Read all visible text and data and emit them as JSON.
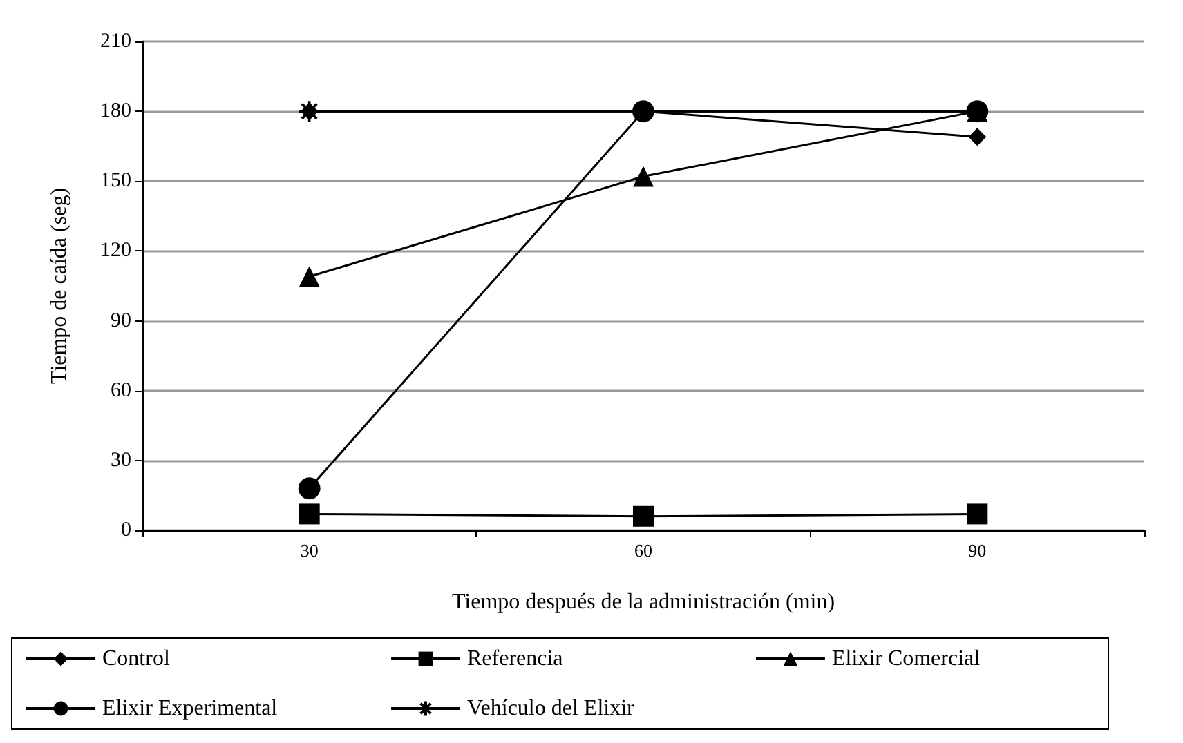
{
  "chart_data": {
    "type": "line",
    "xlabel": "Tiempo después de la administración (min)",
    "ylabel": "Tiempo de caída (seg)",
    "categories": [
      "30",
      "60",
      "90"
    ],
    "ylim": [
      0,
      210
    ],
    "yticks": [
      0,
      30,
      60,
      90,
      120,
      150,
      180,
      210
    ],
    "grid": "y",
    "legend": "bottom",
    "line_style": "solid",
    "series": [
      {
        "name": "Control",
        "color": "#000000",
        "marker": "diamond",
        "values": [
          180,
          180,
          169
        ]
      },
      {
        "name": "Referencia",
        "color": "#000000",
        "marker": "square",
        "values": [
          7,
          6,
          7
        ]
      },
      {
        "name": "Elixir Comercial",
        "color": "#000000",
        "marker": "triangle",
        "values": [
          109,
          152,
          180
        ]
      },
      {
        "name": "Elixir Experimental",
        "color": "#000000",
        "marker": "circle",
        "values": [
          18,
          180,
          180
        ]
      },
      {
        "name": "Vehículo del Elixir",
        "color": "#000000",
        "marker": "cross",
        "values": [
          180,
          180,
          180
        ]
      }
    ]
  }
}
